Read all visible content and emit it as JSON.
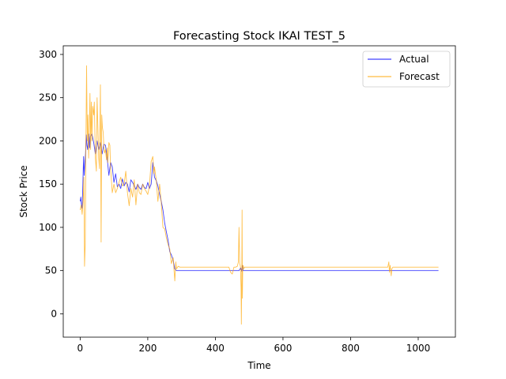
{
  "chart_data": {
    "type": "line",
    "title": "Forecasting Stock IKAI TEST_5",
    "xlabel": "Time",
    "ylabel": "Stock Price",
    "xlim": [
      -50,
      1110
    ],
    "ylim": [
      -27,
      310
    ],
    "xticks": [
      0,
      200,
      400,
      600,
      800,
      1000
    ],
    "yticks": [
      0,
      50,
      100,
      150,
      200,
      250,
      300
    ],
    "grid": false,
    "legend_position": "top-right",
    "series": [
      {
        "name": "Actual",
        "color": "#0000ff",
        "x": [
          0,
          2,
          4,
          6,
          8,
          10,
          12,
          14,
          16,
          18,
          20,
          22,
          24,
          26,
          28,
          30,
          35,
          40,
          45,
          50,
          55,
          60,
          65,
          70,
          75,
          80,
          85,
          90,
          95,
          100,
          105,
          110,
          115,
          120,
          125,
          130,
          135,
          140,
          145,
          150,
          155,
          160,
          165,
          170,
          175,
          180,
          185,
          190,
          195,
          200,
          205,
          210,
          215,
          220,
          225,
          230,
          235,
          240,
          245,
          250,
          255,
          260,
          265,
          270,
          275,
          280,
          285,
          290,
          300,
          350,
          400,
          450,
          460,
          470,
          475,
          478,
          480,
          482,
          485,
          490,
          500,
          600,
          700,
          800,
          900,
          910,
          920,
          925,
          930,
          1000,
          1060
        ],
        "y": [
          130,
          135,
          125,
          122,
          150,
          182,
          160,
          175,
          185,
          207,
          195,
          190,
          200,
          208,
          192,
          205,
          208,
          198,
          185,
          200,
          190,
          198,
          185,
          196,
          195,
          180,
          160,
          175,
          170,
          152,
          162,
          147,
          150,
          145,
          156,
          148,
          152,
          150,
          141,
          155,
          152,
          148,
          144,
          150,
          146,
          144,
          150,
          146,
          145,
          152,
          145,
          150,
          175,
          158,
          154,
          148,
          138,
          130,
          120,
          105,
          95,
          85,
          72,
          68,
          62,
          52,
          50,
          50,
          50,
          50,
          50,
          50,
          50,
          50,
          53,
          49,
          56,
          50,
          50,
          50,
          50,
          50,
          50,
          50,
          50,
          50,
          50,
          50,
          50,
          50,
          50
        ]
      },
      {
        "name": "Forecast",
        "color": "#ffa500",
        "x": [
          0,
          3,
          6,
          9,
          11,
          13,
          15,
          17,
          19,
          21,
          23,
          25,
          27,
          29,
          31,
          33,
          35,
          37,
          40,
          42,
          45,
          48,
          50,
          53,
          55,
          57,
          60,
          62,
          64,
          66,
          68,
          70,
          72,
          75,
          78,
          80,
          82,
          85,
          88,
          90,
          95,
          100,
          105,
          110,
          115,
          120,
          125,
          130,
          135,
          140,
          145,
          150,
          155,
          160,
          165,
          170,
          175,
          180,
          185,
          190,
          195,
          200,
          205,
          210,
          215,
          218,
          220,
          225,
          230,
          235,
          240,
          245,
          250,
          255,
          260,
          265,
          270,
          275,
          280,
          283,
          285,
          290,
          295,
          300,
          350,
          400,
          440,
          445,
          450,
          455,
          460,
          465,
          468,
          470,
          472,
          474,
          476,
          477,
          478,
          479,
          480,
          481,
          482,
          484,
          486,
          490,
          500,
          600,
          700,
          800,
          900,
          910,
          913,
          915,
          917,
          920,
          922,
          925,
          930,
          1000,
          1060
        ],
        "y": [
          120,
          126,
          115,
          132,
          158,
          55,
          80,
          190,
          287,
          200,
          230,
          180,
          210,
          255,
          190,
          245,
          200,
          240,
          230,
          245,
          180,
          165,
          250,
          210,
          180,
          168,
          265,
          83,
          230,
          215,
          210,
          195,
          186,
          190,
          178,
          192,
          175,
          198,
          195,
          168,
          140,
          150,
          140,
          145,
          152,
          158,
          148,
          150,
          165,
          140,
          125,
          145,
          135,
          155,
          126,
          150,
          140,
          138,
          150,
          145,
          142,
          138,
          148,
          176,
          182,
          162,
          170,
          155,
          130,
          150,
          128,
          100,
          98,
          88,
          80,
          75,
          58,
          65,
          38,
          60,
          52,
          55,
          54,
          54,
          54,
          54,
          54,
          48,
          46,
          54,
          54,
          55,
          60,
          100,
          58,
          55,
          30,
          -12,
          45,
          120,
          18,
          55,
          56,
          52,
          54,
          54,
          54,
          54,
          54,
          54,
          54,
          54,
          60,
          48,
          56,
          44,
          52,
          54,
          54,
          54,
          54
        ]
      }
    ]
  }
}
